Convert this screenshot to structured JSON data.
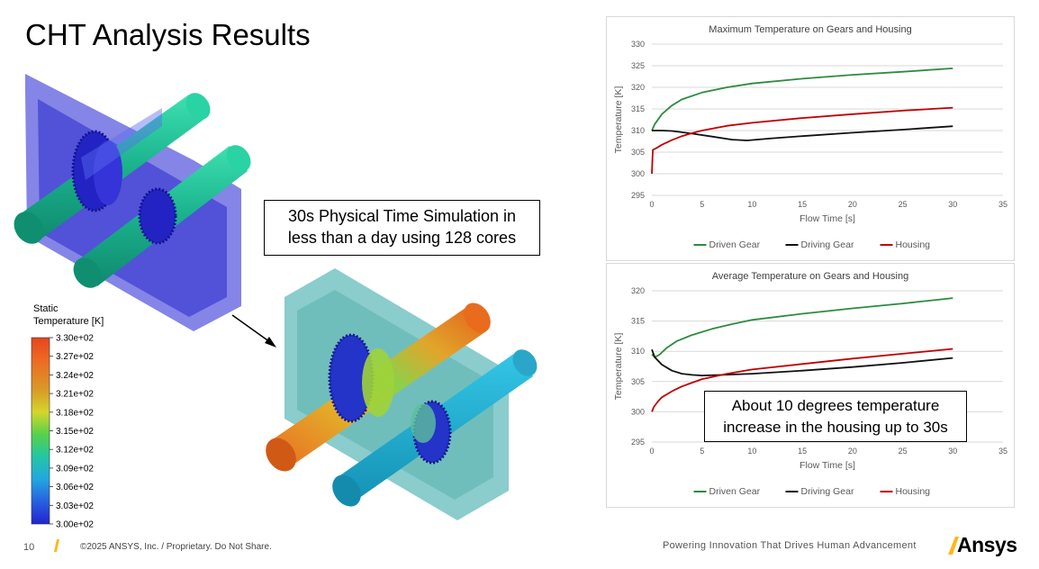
{
  "slide": {
    "title": "CHT Analysis Results",
    "page_number": "10",
    "copyright": "©2025 ANSYS, Inc. / Proprietary. Do Not Share.",
    "tagline": "Powering Innovation That Drives Human Advancement",
    "brand": "Ansys",
    "accent_color": "#ffb71b"
  },
  "callouts": {
    "simulation": [
      "30s Physical Time Simulation in",
      "less than a day using 128 cores"
    ],
    "housing": [
      "About 10 degrees temperature",
      "increase in the housing up to 30s"
    ]
  },
  "legend": {
    "title_line1": "Static",
    "title_line2": "Temperature [K]",
    "labels": [
      "3.30e+02",
      "3.27e+02",
      "3.24e+02",
      "3.21e+02",
      "3.18e+02",
      "3.15e+02",
      "3.12e+02",
      "3.09e+02",
      "3.06e+02",
      "3.03e+02",
      "3.00e+02"
    ]
  },
  "chart_data": [
    {
      "type": "line",
      "title": "Maximum Temperature on Gears and Housing",
      "xlabel": "Flow Time [s]",
      "ylabel": "Temperature [K]",
      "xlim": [
        0,
        35
      ],
      "ylim": [
        295,
        330
      ],
      "xticks": [
        0,
        5,
        10,
        15,
        20,
        25,
        30,
        35
      ],
      "yticks": [
        295,
        300,
        305,
        310,
        315,
        320,
        325,
        330
      ],
      "grid": true,
      "legend_position": "bottom",
      "series": [
        {
          "name": "Driven Gear",
          "color": "#2e8b3e",
          "x": [
            0,
            0.3,
            1,
            2,
            3,
            5,
            7.5,
            10,
            15,
            20,
            25,
            30
          ],
          "y": [
            310,
            311.5,
            313.8,
            315.8,
            317.2,
            318.8,
            320,
            320.9,
            322,
            322.9,
            323.6,
            324.4
          ]
        },
        {
          "name": "Driving Gear",
          "color": "#111111",
          "x": [
            0,
            1,
            2,
            3,
            4,
            6,
            8,
            9.5,
            12,
            15,
            20,
            25,
            30
          ],
          "y": [
            310,
            310,
            309.9,
            309.6,
            309.3,
            308.6,
            307.9,
            307.7,
            308.2,
            308.7,
            309.5,
            310.2,
            311
          ]
        },
        {
          "name": "Housing",
          "color": "#c00000",
          "x": [
            0,
            0.1,
            0.5,
            1,
            2,
            3,
            4,
            5,
            7.5,
            10,
            15,
            20,
            25,
            30
          ],
          "y": [
            300,
            305.5,
            306,
            306.7,
            307.8,
            308.7,
            309.4,
            310,
            311.1,
            311.8,
            312.9,
            313.8,
            314.6,
            315.3
          ]
        }
      ]
    },
    {
      "type": "line",
      "title": "Average Temperature on Gears and Housing",
      "xlabel": "Flow Time [s]",
      "ylabel": "Temperature [K]",
      "xlim": [
        0,
        35
      ],
      "ylim": [
        295,
        320
      ],
      "xticks": [
        0,
        5,
        10,
        15,
        20,
        25,
        30,
        35
      ],
      "yticks": [
        295,
        300,
        305,
        310,
        315,
        320
      ],
      "grid": true,
      "legend_position": "bottom",
      "series": [
        {
          "name": "Driven Gear",
          "color": "#2e8b3e",
          "x": [
            0,
            0.3,
            0.8,
            1.5,
            2.5,
            4,
            6,
            8,
            10,
            15,
            20,
            25,
            30
          ],
          "y": [
            309.5,
            309,
            309.5,
            310.6,
            311.7,
            312.7,
            313.7,
            314.5,
            315.2,
            316.2,
            317.1,
            317.9,
            318.8
          ]
        },
        {
          "name": "Driving Gear",
          "color": "#111111",
          "x": [
            0,
            0.3,
            1,
            2,
            3,
            4,
            5,
            7,
            10,
            15,
            20,
            25,
            30
          ],
          "y": [
            310.3,
            309,
            307.8,
            306.8,
            306.3,
            306.1,
            306,
            306.1,
            306.3,
            306.8,
            307.4,
            308.1,
            308.9
          ]
        },
        {
          "name": "Housing",
          "color": "#c00000",
          "x": [
            0,
            0.2,
            0.6,
            1,
            2,
            3,
            4,
            5,
            7.5,
            10,
            15,
            20,
            25,
            30
          ],
          "y": [
            300,
            300.8,
            301.7,
            302.4,
            303.4,
            304.2,
            304.8,
            305.4,
            306.3,
            307,
            307.9,
            308.8,
            309.6,
            310.4
          ]
        }
      ]
    }
  ]
}
